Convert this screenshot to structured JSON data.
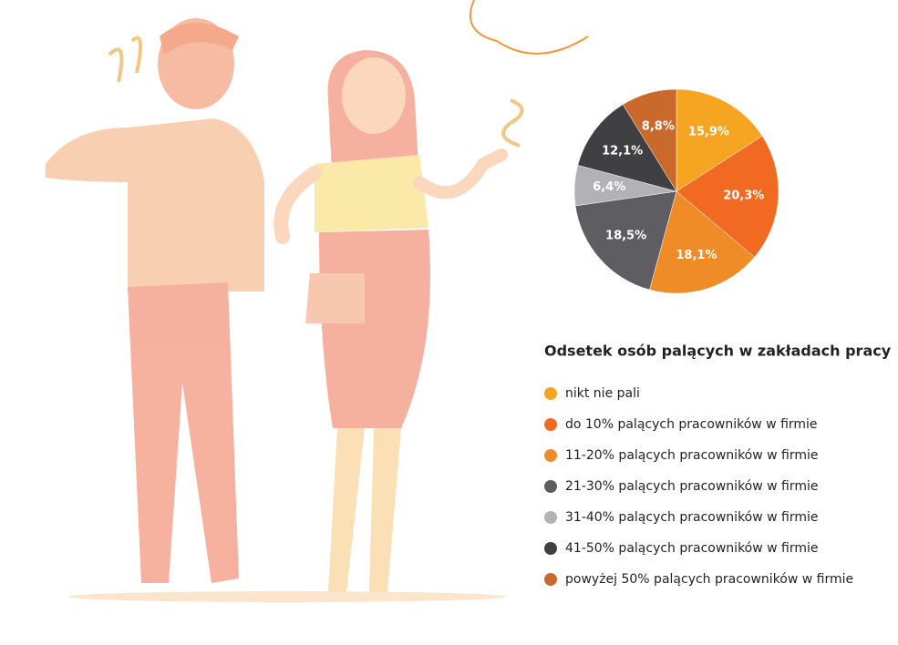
{
  "chart_data": {
    "type": "pie",
    "title": "Odsetek osób palących w zakładach pracy",
    "categories": [
      "nikt nie pali",
      "do 10% palących pracowników w firmie",
      "11-20% palących pracowników w firmie",
      "21-30% palących pracowników w firmie",
      "31-40% palących pracowników w firmie",
      "41-50% palących pracowników w firmie",
      "powyżej 50% palących pracowników w firmie"
    ],
    "values": [
      15.9,
      20.3,
      18.1,
      18.5,
      6.4,
      12.1,
      8.8
    ],
    "value_labels": [
      "15,9%",
      "20,3%",
      "18,1%",
      "18,5%",
      "6,4%",
      "12,1%",
      "8,8%"
    ],
    "colors": [
      "#f6a523",
      "#f26a22",
      "#f08c28",
      "#5e5d62",
      "#b2b1b5",
      "#404043",
      "#c9692b"
    ]
  }
}
